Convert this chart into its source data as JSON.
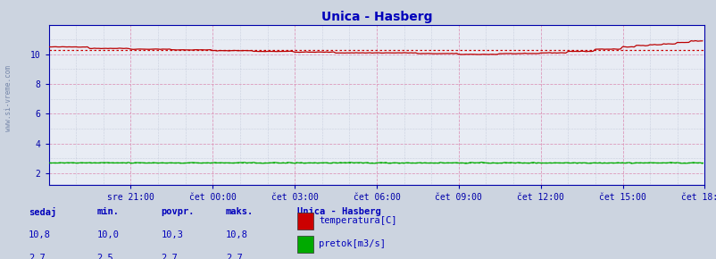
{
  "title": "Unica - Hasberg",
  "bg_color": "#ccd4e0",
  "plot_bg_color": "#e8ecf4",
  "title_color": "#0000bb",
  "axis_label_color": "#0000aa",
  "grid_color_major_h": "#dd99bb",
  "grid_color_major_v": "#dd99bb",
  "grid_color_minor": "#b0b8cc",
  "x_tick_labels": [
    "sre 21:00",
    "čet 00:00",
    "čet 03:00",
    "čet 06:00",
    "čet 09:00",
    "čet 12:00",
    "čet 15:00",
    "čet 18:00"
  ],
  "yticks": [
    2,
    4,
    6,
    8,
    10
  ],
  "ylim": [
    1.2,
    12.0
  ],
  "xlim_n": 288,
  "temp_avg": 10.3,
  "flow_avg": 2.7,
  "watermark": "www.si-vreme.com",
  "legend_title": "Unica - Hasberg",
  "legend_items": [
    "temperatura[C]",
    "pretok[m3/s]"
  ],
  "legend_colors": [
    "#cc0000",
    "#00aa00"
  ],
  "stats_headers": [
    "sedaj",
    "min.",
    "povpr.",
    "maks."
  ],
  "stats_temp": [
    "10,8",
    "10,0",
    "10,3",
    "10,8"
  ],
  "stats_flow": [
    "2,7",
    "2,5",
    "2,7",
    "2,7"
  ],
  "temp_color": "#bb0000",
  "flow_color": "#00aa00",
  "avg_temp_color": "#cc0000",
  "avg_flow_color": "#00aa00",
  "spine_color": "#0000aa",
  "tick_label_color": "#0000aa"
}
